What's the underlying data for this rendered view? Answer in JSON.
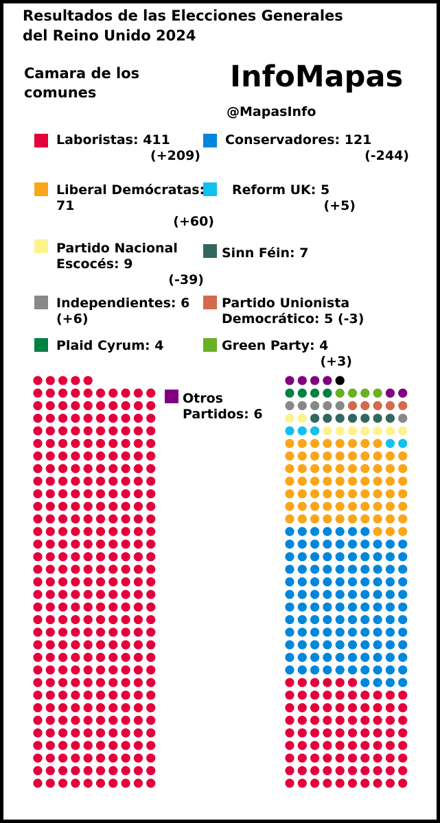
{
  "chart_data": {
    "type": "seat-dots",
    "title": "Resultados de las Elecciones Generales del Reino Unido 2024",
    "subtitle": "Camara de los comunes",
    "brand": "InfoMapas",
    "handle": "@MapasInfo",
    "parties": [
      {
        "label": "Laboristas: 411",
        "change": "(+209)",
        "seats": 411,
        "color": "#e4003b"
      },
      {
        "label": "Conservadores: 121",
        "change": "(-244)",
        "seats": 121,
        "color": "#0087dc"
      },
      {
        "label": "Liberal Demócratas: 71",
        "change": "(+60)",
        "seats": 71,
        "color": "#faa61a"
      },
      {
        "label": "Reform UK: 5",
        "change": "(+5)",
        "seats": 5,
        "color": "#12c0f0"
      },
      {
        "label": "Partido Nacional Escocés: 9",
        "change": "(-39)",
        "seats": 9,
        "color": "#fdf38e"
      },
      {
        "label": "Sinn Féin: 7",
        "seats": 7,
        "color": "#326760"
      },
      {
        "label": "Independientes: 6",
        "change": "(+6)",
        "seats": 6,
        "color": "#888888"
      },
      {
        "label": "Partido Unionista Democrático: 5",
        "change": "(-3)",
        "seats": 5,
        "color": "#d46a4c"
      },
      {
        "label": "Plaid Cyrum: 4",
        "seats": 4,
        "color": "#008142"
      },
      {
        "label": "Green Party: 4",
        "change": "(+3)",
        "seats": 4,
        "color": "#6ab023"
      },
      {
        "label": "Otros Partidos: 6",
        "seats": 6,
        "color": "#800080"
      }
    ],
    "speaker": {
      "seats": 1,
      "color": "#000000"
    }
  }
}
